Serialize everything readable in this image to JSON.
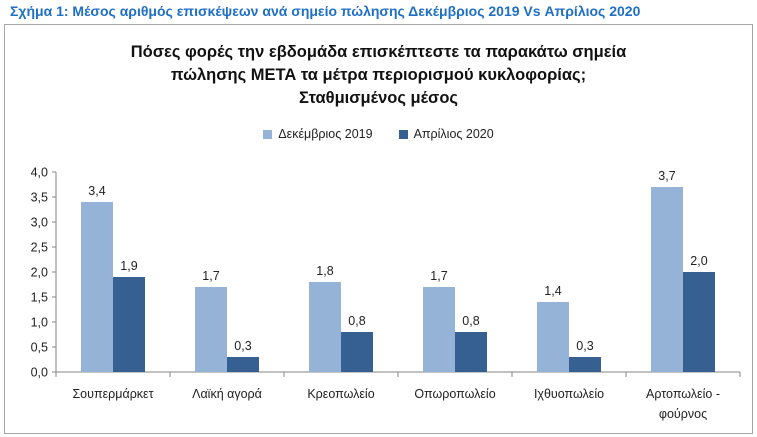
{
  "figure": {
    "caption": "Σχήμα 1: Μέσος αριθμός επισκέψεων ανά σημείο πώλησης Δεκέμβριος 2019 Vs Απρίλιος 2020"
  },
  "chart_data": {
    "type": "bar",
    "title": "Πόσες φορές την εβδομάδα επισκέπτεστε τα παρακάτω σημεία πώλησης ΜΕΤΑ τα μέτρα περιορισμού κυκλοφορίας; Σταθμισμένος μέσος",
    "title_lines": [
      "Πόσες φορές την εβδομάδα επισκέπτεστε τα παρακάτω σημεία",
      "πώλησης ΜΕΤΑ τα μέτρα περιορισμού κυκλοφορίας;",
      "Σταθμισμένος μέσος"
    ],
    "categories": [
      "Σουπερμάρκετ",
      "Λαϊκή αγορά",
      "Κρεοπωλείο",
      "Οπωροπωλείο",
      "Ιχθυοπωλείο",
      "Αρτοπωλείο - φούρνος"
    ],
    "category_lines": [
      [
        "Σουπερμάρκετ"
      ],
      [
        "Λαϊκή αγορά"
      ],
      [
        "Κρεοπωλείο"
      ],
      [
        "Οπωροπωλείο"
      ],
      [
        "Ιχθυοπωλείο"
      ],
      [
        "Αρτοπωλείο -",
        "φούρνος"
      ]
    ],
    "series": [
      {
        "name": "Δεκέμβριος 2019",
        "color": "#95b3d7",
        "values": [
          3.4,
          1.7,
          1.8,
          1.7,
          1.4,
          3.7
        ],
        "labels": [
          "3,4",
          "1,7",
          "1,8",
          "1,7",
          "1,4",
          "3,7"
        ]
      },
      {
        "name": "Απρίλιος 2020",
        "color": "#366092",
        "values": [
          1.9,
          0.3,
          0.8,
          0.8,
          0.3,
          2.0
        ],
        "labels": [
          "1,9",
          "0,3",
          "0,8",
          "0,8",
          "0,3",
          "2,0"
        ]
      }
    ],
    "ylim": [
      0,
      4
    ],
    "yticks": [
      "0,0",
      "0,5",
      "1,0",
      "1,5",
      "2,0",
      "2,5",
      "3,0",
      "3,5",
      "4,0"
    ],
    "ytick_values": [
      0,
      0.5,
      1,
      1.5,
      2,
      2.5,
      3,
      3.5,
      4
    ],
    "xlabel": "",
    "ylabel": "",
    "grid": false,
    "legend_position": "top"
  }
}
